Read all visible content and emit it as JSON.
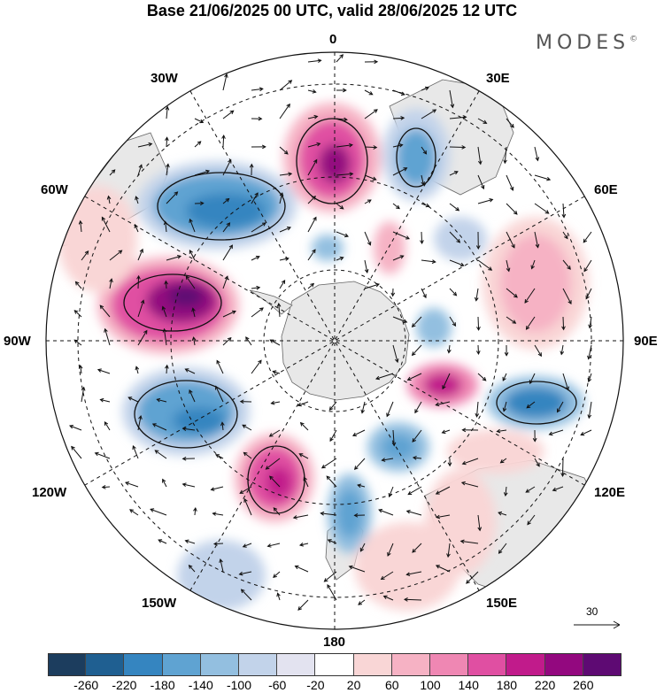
{
  "title": "Base 21/06/2025 00 UTC, valid 28/06/2025 12 UTC",
  "brand": "MODES",
  "brand_mark": "©",
  "longitude_labels": {
    "lon_0": "0",
    "lon_30e": "30E",
    "lon_60e": "60E",
    "lon_90e": "90E",
    "lon_120e": "120E",
    "lon_150e": "150E",
    "lon_180": "180",
    "lon_150w": "150W",
    "lon_120w": "120W",
    "lon_90w": "90W",
    "lon_60w": "60W",
    "lon_30w": "30W"
  },
  "vector_scale_label": "30",
  "colorbar": {
    "ticks": [
      "-260",
      "-220",
      "-180",
      "-140",
      "-100",
      "-60",
      "-20",
      "20",
      "60",
      "100",
      "140",
      "180",
      "220",
      "260"
    ],
    "colors": [
      "#1c3d5e",
      "#1f5f91",
      "#3585c0",
      "#5fa3d2",
      "#93bfe0",
      "#c2d3ea",
      "#e3e3f0",
      "#ffffff",
      "#f9d6d6",
      "#f6b2c4",
      "#ef87b3",
      "#e04fa2",
      "#c11b8b",
      "#93087f",
      "#5e0a73"
    ]
  },
  "map": {
    "projection": "south-polar-stereographic",
    "land_color": "#e8e8e8",
    "coast_color": "#555555"
  }
}
